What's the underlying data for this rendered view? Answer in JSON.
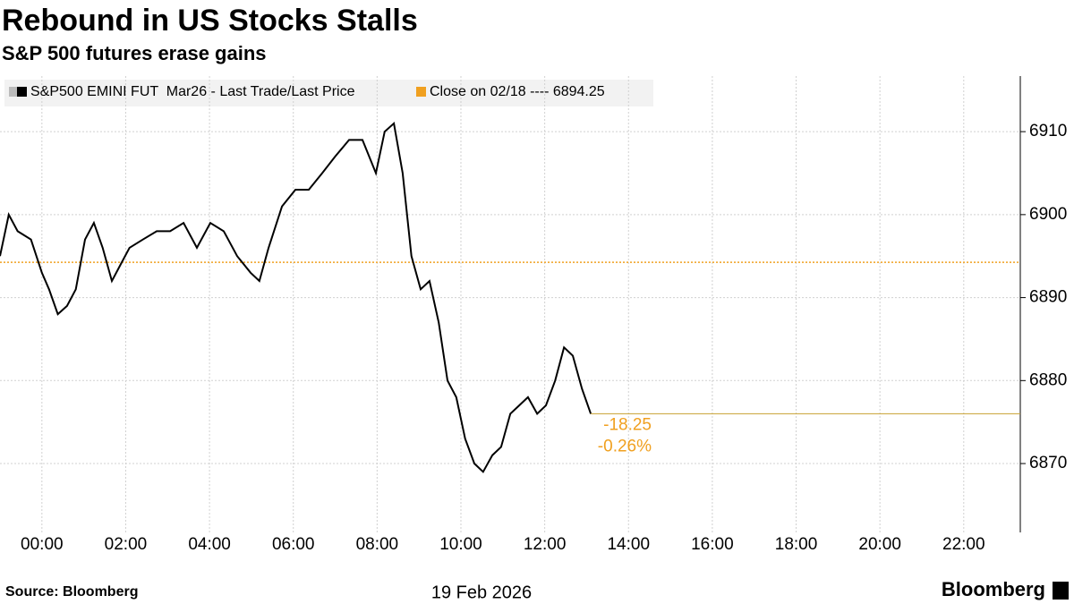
{
  "chart_data": {
    "type": "line",
    "title": "Rebound in US Stocks Stalls",
    "subtitle": "S&P 500 futures erase gains",
    "source": "Source: Bloomberg",
    "brand": "Bloomberg",
    "xlabel": "19 Feb 2026",
    "x": [
      -1.0,
      -0.79,
      -0.58,
      -0.26,
      0,
      0.17,
      0.38,
      0.6,
      0.81,
      1.03,
      1.24,
      1.45,
      1.67,
      1.88,
      2.09,
      2.41,
      2.74,
      3.06,
      3.38,
      3.7,
      4.02,
      4.34,
      4.66,
      4.98,
      5.19,
      5.41,
      5.73,
      6.05,
      6.37,
      6.69,
      7.0,
      7.33,
      7.65,
      7.97,
      8.18,
      8.4,
      8.61,
      8.82,
      9.04,
      9.25,
      9.47,
      9.68,
      9.89,
      10.1,
      10.32,
      10.53,
      10.75,
      10.96,
      11.18,
      11.39,
      11.6,
      11.82,
      12.03,
      12.25,
      12.46,
      12.67,
      12.89,
      13.1
    ],
    "series": [
      {
        "name": "S&P500 EMINI FUT  Mar26 - Last Trade/Last Price",
        "color": "#000000",
        "values": [
          6895,
          6900,
          6898,
          6897,
          6893,
          6891,
          6888,
          6889,
          6891,
          6897,
          6899,
          6896,
          6892,
          6894,
          6896,
          6897,
          6898,
          6898,
          6899,
          6896,
          6899,
          6898,
          6895,
          6893,
          6892,
          6896,
          6901,
          6903,
          6903,
          6905,
          6907,
          6909,
          6909,
          6905,
          6910,
          6911,
          6905,
          6895,
          6891,
          6892,
          6887,
          6880,
          6878,
          6873,
          6870,
          6869,
          6871,
          6872,
          6876,
          6877,
          6878,
          6876,
          6877,
          6880,
          6884,
          6883,
          6879,
          6876
        ]
      }
    ],
    "reference_line": {
      "name": "Close on 02/18 ---- 6894.25",
      "value": 6894.25,
      "color": "#f0a020"
    },
    "annotations": [
      "-18.25",
      "-0.26%"
    ],
    "xlim": [
      -1.0,
      23.35
    ],
    "xticks": [
      {
        "value": 0,
        "label": "00:00"
      },
      {
        "value": 2,
        "label": "02:00"
      },
      {
        "value": 4,
        "label": "04:00"
      },
      {
        "value": 6,
        "label": "06:00"
      },
      {
        "value": 8,
        "label": "08:00"
      },
      {
        "value": 10,
        "label": "10:00"
      },
      {
        "value": 12,
        "label": "12:00"
      },
      {
        "value": 14,
        "label": "14:00"
      },
      {
        "value": 16,
        "label": "16:00"
      },
      {
        "value": 18,
        "label": "18:00"
      },
      {
        "value": 20,
        "label": "20:00"
      },
      {
        "value": 22,
        "label": "22:00"
      }
    ],
    "ylim": [
      6861.7,
      6916.7
    ],
    "yticks": [
      6870,
      6880,
      6890,
      6900,
      6910
    ],
    "grid": true
  }
}
